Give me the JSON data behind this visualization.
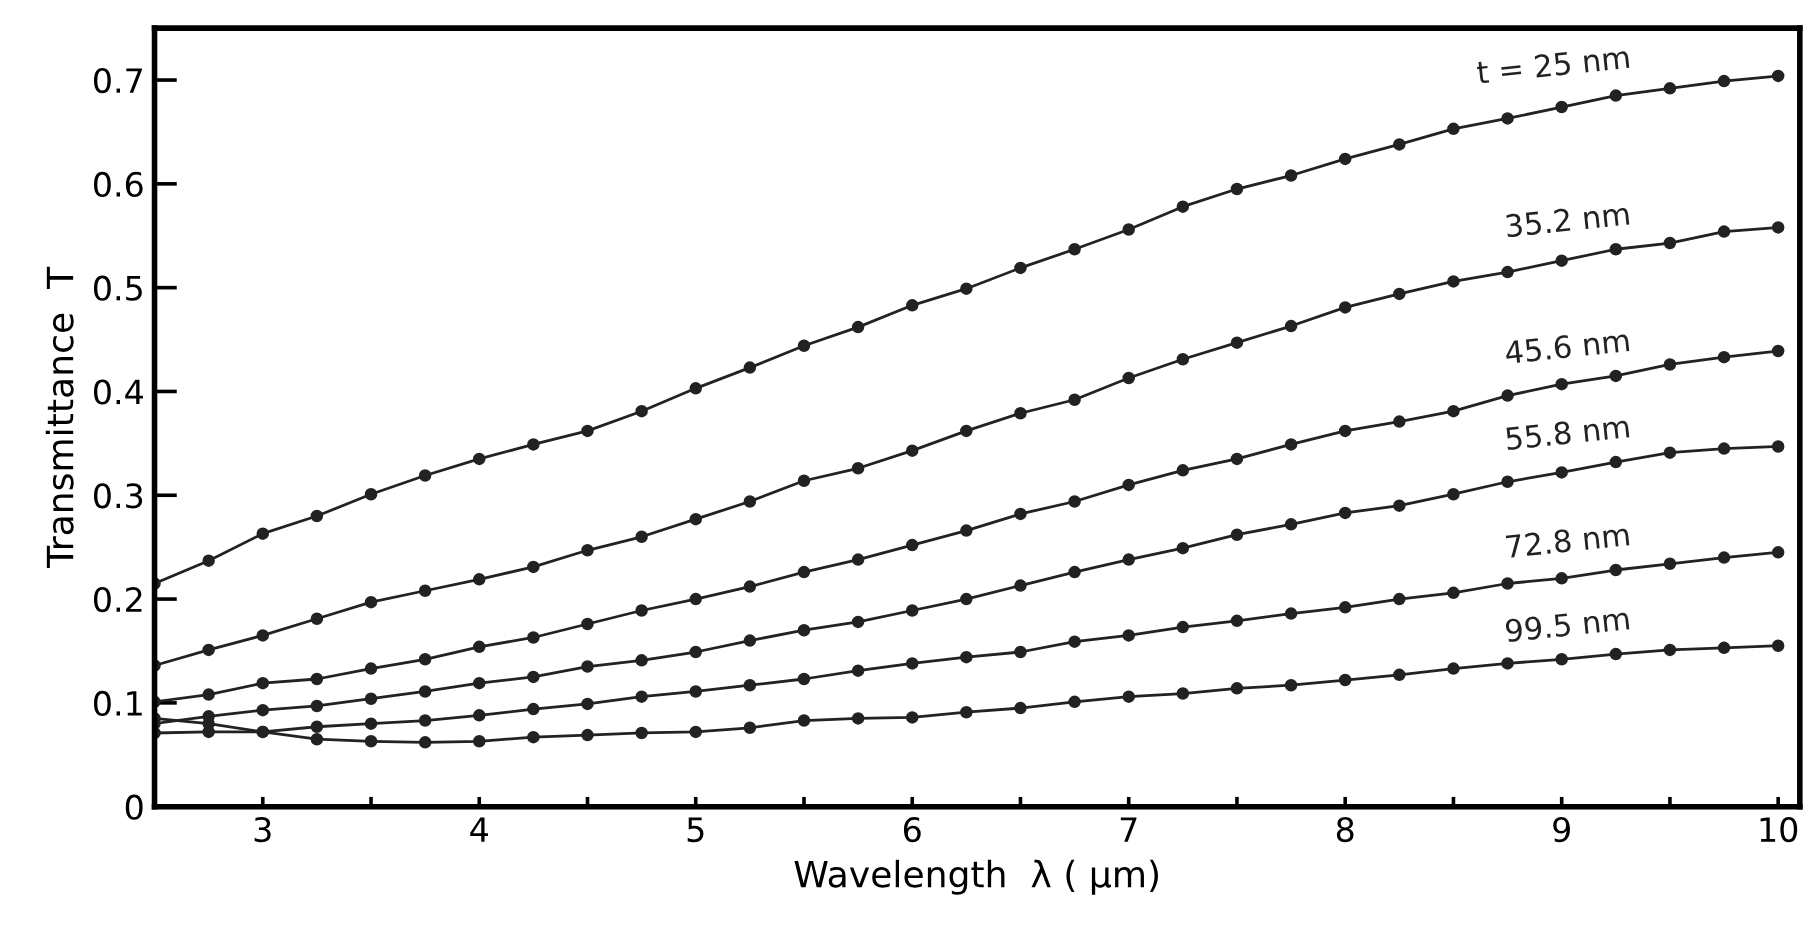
{
  "chart_data": {
    "type": "line",
    "xlabel": "Wavelength  λ ( μm)",
    "ylabel": "Transmittance  T",
    "x": [
      2.5,
      2.75,
      3.0,
      3.25,
      3.5,
      3.75,
      4.0,
      4.25,
      4.5,
      4.75,
      5.0,
      5.25,
      5.5,
      5.75,
      6.0,
      6.25,
      6.5,
      6.75,
      7.0,
      7.25,
      7.5,
      7.75,
      8.0,
      8.25,
      8.5,
      8.75,
      9.0,
      9.25,
      9.5,
      9.75,
      10.0
    ],
    "series": [
      {
        "name": "t = 25 nm",
        "color": "#222222",
        "values": [
          0.215,
          0.237,
          0.263,
          0.28,
          0.301,
          0.319,
          0.335,
          0.349,
          0.362,
          0.381,
          0.403,
          0.423,
          0.444,
          0.462,
          0.483,
          0.499,
          0.519,
          0.537,
          0.556,
          0.578,
          0.595,
          0.608,
          0.624,
          0.638,
          0.653,
          0.663,
          0.674,
          0.685,
          0.692,
          0.699,
          0.704
        ]
      },
      {
        "name": "35.2 nm",
        "color": "#222222",
        "values": [
          0.136,
          0.151,
          0.165,
          0.181,
          0.197,
          0.208,
          0.219,
          0.231,
          0.247,
          0.26,
          0.277,
          0.294,
          0.314,
          0.326,
          0.343,
          0.362,
          0.379,
          0.392,
          0.413,
          0.431,
          0.447,
          0.463,
          0.481,
          0.494,
          0.506,
          0.515,
          0.526,
          0.537,
          0.543,
          0.554,
          0.558
        ]
      },
      {
        "name": "45.6 nm",
        "color": "#222222",
        "values": [
          0.101,
          0.108,
          0.119,
          0.123,
          0.133,
          0.142,
          0.154,
          0.163,
          0.176,
          0.189,
          0.2,
          0.212,
          0.226,
          0.238,
          0.252,
          0.266,
          0.282,
          0.294,
          0.31,
          0.324,
          0.335,
          0.349,
          0.362,
          0.371,
          0.381,
          0.396,
          0.407,
          0.415,
          0.426,
          0.433,
          0.439
        ]
      },
      {
        "name": "55.8 nm",
        "color": "#222222",
        "values": [
          0.08,
          0.087,
          0.093,
          0.097,
          0.104,
          0.111,
          0.119,
          0.125,
          0.135,
          0.141,
          0.149,
          0.16,
          0.17,
          0.178,
          0.189,
          0.2,
          0.213,
          0.226,
          0.238,
          0.249,
          0.262,
          0.272,
          0.283,
          0.29,
          0.301,
          0.313,
          0.322,
          0.332,
          0.341,
          0.345,
          0.347
        ]
      },
      {
        "name": "72.8 nm",
        "color": "#222222",
        "values": [
          0.071,
          0.072,
          0.072,
          0.077,
          0.08,
          0.083,
          0.088,
          0.094,
          0.099,
          0.106,
          0.111,
          0.117,
          0.123,
          0.131,
          0.138,
          0.144,
          0.149,
          0.159,
          0.165,
          0.173,
          0.179,
          0.186,
          0.192,
          0.2,
          0.206,
          0.215,
          0.22,
          0.228,
          0.234,
          0.24,
          0.245
        ]
      },
      {
        "name": "99.5 nm",
        "color": "#222222",
        "values": [
          0.085,
          0.08,
          0.072,
          0.065,
          0.063,
          0.062,
          0.063,
          0.067,
          0.069,
          0.071,
          0.072,
          0.076,
          0.083,
          0.085,
          0.086,
          0.091,
          0.095,
          0.101,
          0.106,
          0.109,
          0.114,
          0.117,
          0.122,
          0.127,
          0.133,
          0.138,
          0.142,
          0.147,
          0.151,
          0.153,
          0.155
        ]
      }
    ],
    "xlim": [
      2.5,
      10.1
    ],
    "ylim": [
      0,
      0.75
    ],
    "xticks": [
      3,
      {
        "value": 3.5,
        "label": null
      },
      4,
      {
        "value": 4.5,
        "label": null
      },
      5,
      {
        "value": 5.5,
        "label": null
      },
      6,
      {
        "value": 6.5,
        "label": null
      },
      7,
      {
        "value": 7.5,
        "label": null
      },
      8,
      {
        "value": 8.5,
        "label": null
      },
      9,
      {
        "value": 9.5,
        "label": null
      },
      10
    ],
    "yticks": [
      0,
      0.1,
      0.2,
      0.3,
      0.4,
      0.5,
      0.6,
      0.7
    ],
    "grid": false,
    "legend": false,
    "marker": "circle",
    "line_style": "solid"
  }
}
